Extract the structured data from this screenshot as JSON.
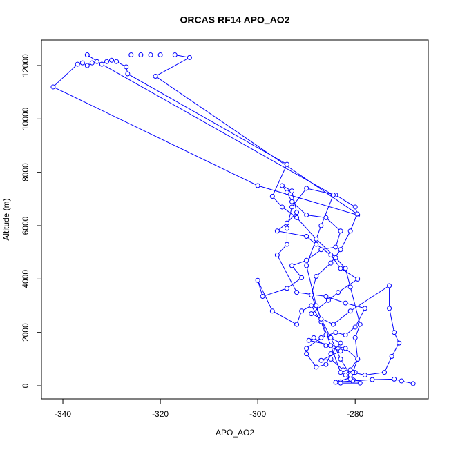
{
  "chart_data": {
    "type": "line",
    "title": "ORCAS RF14 APO_AO2",
    "x_label": "APO_AO2",
    "y_label": "Altitude (m)",
    "color": "#0000ff",
    "marker": "circle",
    "xlim": [
      -344.4,
      -265.0
    ],
    "ylim": [
      -491,
      12957
    ],
    "xticks": [
      -340,
      -320,
      -300,
      -280
    ],
    "yticks": [
      0,
      2000,
      4000,
      6000,
      8000,
      10000,
      12000
    ],
    "x": [
      -268.1,
      -270.5,
      -272,
      -276.5,
      -280.5,
      -283,
      -284,
      -281,
      -280,
      -282.5,
      -285,
      -287,
      -283,
      -286,
      -288.5,
      -289.5,
      -282,
      -279.5,
      -280.5,
      -278,
      -274,
      -272.5,
      -271,
      -272,
      -273,
      -273,
      -281,
      -284.5,
      -289,
      -285.5,
      -283.5,
      -279.5,
      -283,
      -285,
      -288,
      -290,
      -296,
      -294,
      -292,
      -293,
      -295,
      -294,
      -293,
      -290,
      -286,
      -283,
      -284,
      -287,
      -290,
      -293,
      -291,
      -294,
      -299,
      -300,
      -297,
      -292,
      -291,
      -289,
      -287,
      -286,
      -283,
      -285,
      -286,
      -288,
      -290,
      -290,
      -287,
      -284,
      -282,
      -280,
      -278,
      -282,
      -286,
      -292,
      -296,
      -294,
      -294,
      -293,
      -290,
      -284,
      -280,
      -279.5,
      -300,
      -342,
      -337,
      -336,
      -335,
      -334,
      -333,
      -332,
      -331,
      -330,
      -329,
      -327,
      -326.7,
      -294,
      -297,
      -295,
      -292,
      -288,
      -284,
      -282,
      -281,
      -279,
      -280,
      -279.5,
      -281,
      -282,
      -281,
      -283,
      -285,
      -288,
      -290,
      -287,
      -284.5,
      -332,
      -335,
      -326,
      -324,
      -322,
      -320,
      -317,
      -314,
      -321,
      -279.6,
      -281,
      -283,
      -285,
      -288,
      -289,
      -287,
      -285,
      -283,
      -281,
      -279,
      -283
    ],
    "values": [
      80,
      180,
      250,
      230,
      180,
      150,
      130,
      300,
      500,
      600,
      1000,
      950,
      1300,
      1500,
      1800,
      1700,
      1400,
      1000,
      500,
      400,
      500,
      1100,
      1600,
      2000,
      2900,
      3750,
      2800,
      2300,
      2700,
      3200,
      3500,
      4000,
      4400,
      4900,
      5300,
      5600,
      5800,
      6100,
      6500,
      7300,
      7500,
      7250,
      6900,
      6400,
      6300,
      5800,
      5200,
      5100,
      4700,
      4500,
      4050,
      3650,
      3350,
      3950,
      2800,
      2300,
      2800,
      3000,
      2400,
      1900,
      1600,
      1200,
      800,
      700,
      1200,
      1400,
      1800,
      2000,
      1900,
      2200,
      2900,
      3100,
      3350,
      3500,
      4900,
      5300,
      5900,
      6700,
      7400,
      7150,
      6700,
      6400,
      7500,
      11200,
      12050,
      12100,
      12000,
      12100,
      12150,
      12050,
      12150,
      12200,
      12150,
      11950,
      11690,
      8300,
      7100,
      6700,
      6300,
      5500,
      4800,
      4400,
      3700,
      2300,
      1800,
      1000,
      600,
      400,
      250,
      500,
      1500,
      3000,
      4500,
      6000,
      7150,
      12050,
      12400,
      12400,
      12400,
      12400,
      12400,
      12400,
      12300,
      11600,
      6440,
      5800,
      5100,
      4600,
      4100,
      3400,
      2500,
      1800,
      1000,
      400,
      100,
      100
    ]
  }
}
